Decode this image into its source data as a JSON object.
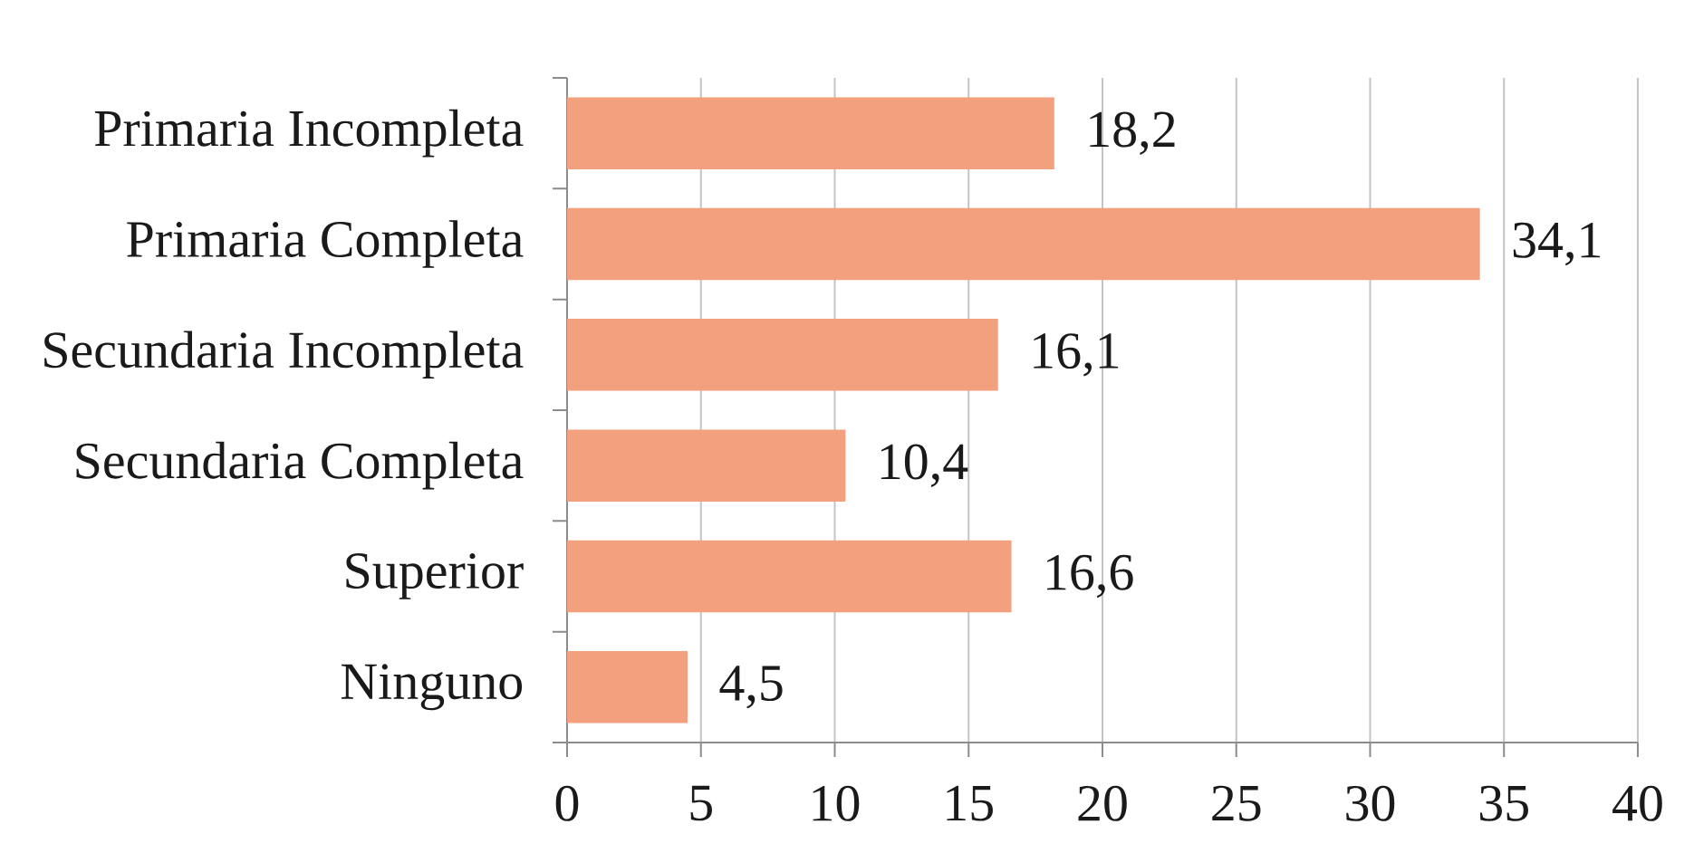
{
  "chart_data": {
    "type": "bar",
    "orientation": "horizontal",
    "categories": [
      "Primaria Incompleta",
      "Primaria Completa",
      "Secundaria Incompleta",
      "Secundaria Completa",
      "Superior",
      "Ninguno"
    ],
    "values": [
      18.2,
      34.1,
      16.1,
      10.4,
      16.6,
      4.5
    ],
    "value_labels": [
      "18,2",
      "34,1",
      "16,1",
      "10,4",
      "16,6",
      "4,5"
    ],
    "color": "#f3a07e",
    "xlim": [
      0,
      40
    ],
    "xticks": [
      0,
      5,
      10,
      15,
      20,
      25,
      30,
      35,
      40
    ],
    "grid": "x"
  }
}
